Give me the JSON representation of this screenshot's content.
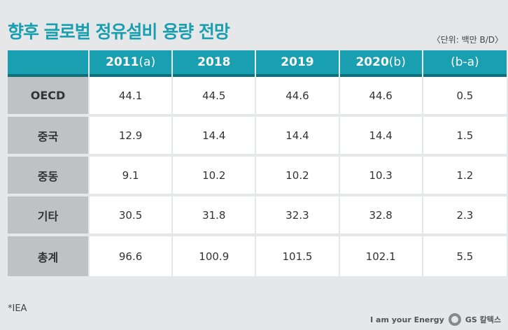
{
  "title": "향후 글로벌 정유설비 용량 전망",
  "unit": "〈단위: 백만 B/D〉",
  "source": "*IEA",
  "brand": {
    "slogan": "I am your Energy",
    "company": "GS 칼텍스"
  },
  "chart_data": {
    "type": "table",
    "columns": [
      {
        "main": "2011",
        "suffix": "(a)"
      },
      {
        "main": "2018",
        "suffix": ""
      },
      {
        "main": "2019",
        "suffix": ""
      },
      {
        "main": "2020",
        "suffix": "(b)"
      },
      {
        "main": "",
        "suffix": "(b-a)"
      }
    ],
    "rows": [
      {
        "label": "OECD",
        "values": [
          "44.1",
          "44.5",
          "44.6",
          "44.6",
          "0.5"
        ]
      },
      {
        "label": "중국",
        "values": [
          "12.9",
          "14.4",
          "14.4",
          "14.4",
          "1.5"
        ]
      },
      {
        "label": "중동",
        "values": [
          "9.1",
          "10.2",
          "10.2",
          "10.3",
          "1.2"
        ]
      },
      {
        "label": "기타",
        "values": [
          "30.5",
          "31.8",
          "32.3",
          "32.8",
          "2.3"
        ]
      },
      {
        "label": "총계",
        "values": [
          "96.6",
          "100.9",
          "101.5",
          "102.1",
          "5.5"
        ]
      }
    ]
  },
  "colors": {
    "header": "#1a9fb0",
    "row_label": "#bfc1c3",
    "background": "#e6e7e8"
  }
}
